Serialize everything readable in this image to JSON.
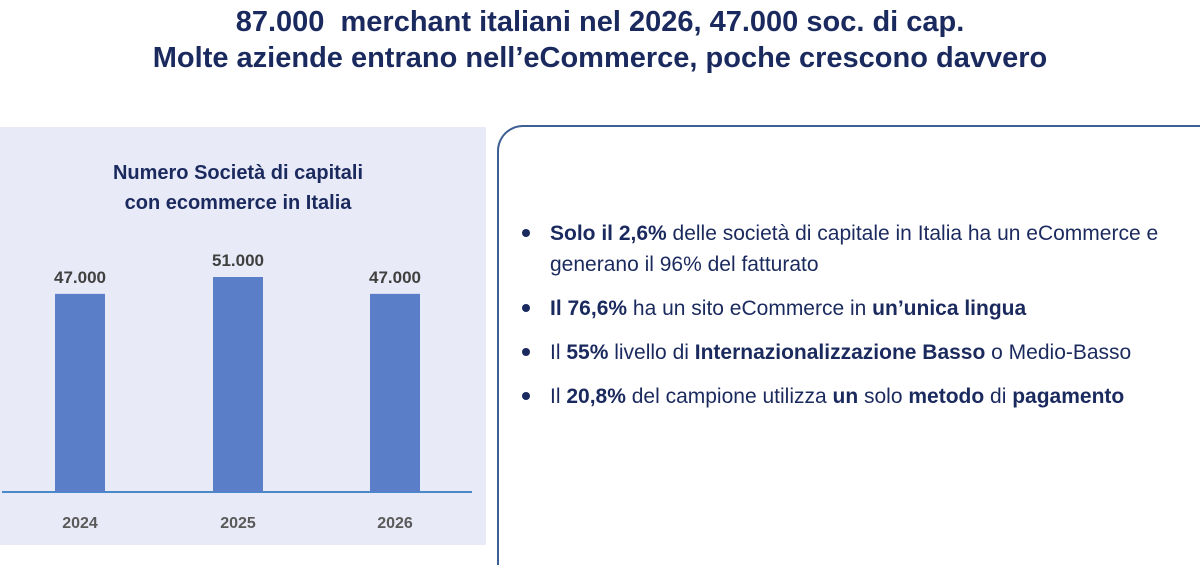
{
  "header": {
    "title_line1": "87.000  merchant italiani nel 2026, 47.000 soc. di cap.",
    "title_line2": "Molte aziende entrano nell’eCommerce, poche crescono davvero"
  },
  "chart_data": {
    "type": "bar",
    "title_line1": "Numero Società di capitali",
    "title_line2": "con ecommerce in Italia",
    "categories": [
      "2024",
      "2025",
      "2026"
    ],
    "values": [
      47000,
      51000,
      47000
    ],
    "data_labels": [
      "47.000",
      "51.000",
      "47.000"
    ],
    "xlabel": "",
    "ylabel": "",
    "grid": false,
    "legend": "none",
    "bar_color": "#5a7ec8"
  },
  "bullets": [
    [
      {
        "text": "Solo il 2,6%",
        "bold": true
      },
      {
        "text": " delle società di capitale in Italia ha un eCommerce e generano il 96% del fatturato",
        "bold": false
      }
    ],
    [
      {
        "text": "Il 76,6%",
        "bold": true
      },
      {
        "text": " ha un sito eCommerce in ",
        "bold": false
      },
      {
        "text": "un’unica lingua",
        "bold": true
      }
    ],
    [
      {
        "text": "Il ",
        "bold": false
      },
      {
        "text": "55%",
        "bold": true
      },
      {
        "text": "  livello di ",
        "bold": false
      },
      {
        "text": "Internazionalizzazione Basso",
        "bold": true
      },
      {
        "text": " o Medio-Basso",
        "bold": false
      }
    ],
    [
      {
        "text": "Il ",
        "bold": false
      },
      {
        "text": "20,8%",
        "bold": true
      },
      {
        "text": " del campione utilizza ",
        "bold": false
      },
      {
        "text": "un",
        "bold": true
      },
      {
        "text": " solo ",
        "bold": false
      },
      {
        "text": "metodo",
        "bold": true
      },
      {
        "text": " di ",
        "bold": false
      },
      {
        "text": "pagamento",
        "bold": true
      }
    ]
  ]
}
